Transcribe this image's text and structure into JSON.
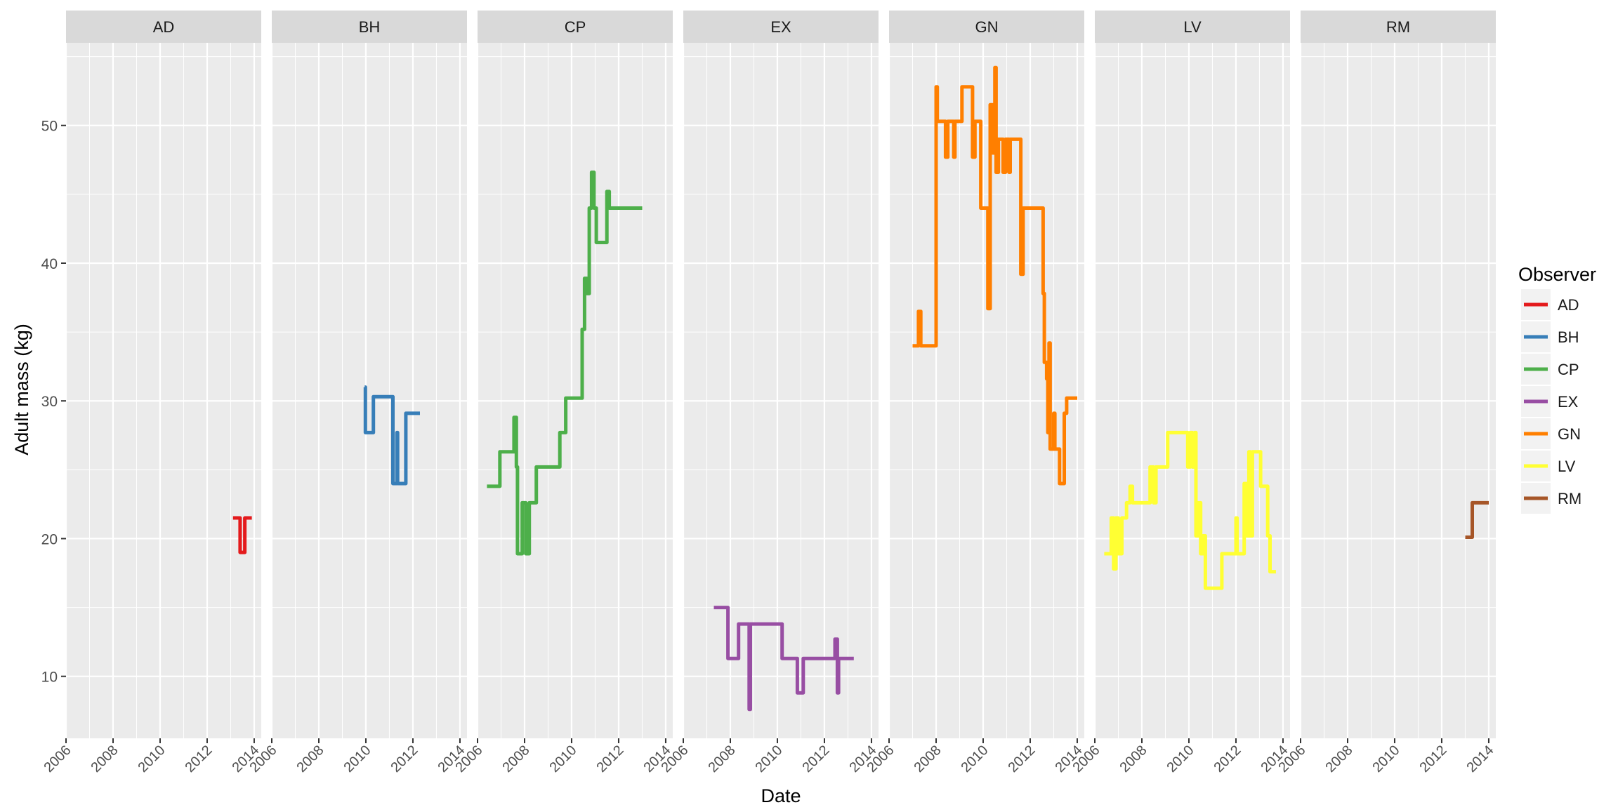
{
  "chart_data": {
    "type": "line",
    "subtype": "step",
    "faceted": true,
    "xlabel": "Date",
    "ylabel": "Adult mass (kg)",
    "xlim": [
      2006,
      2014.3
    ],
    "ylim": [
      5.5,
      56
    ],
    "x_ticks": [
      2006,
      2008,
      2010,
      2012,
      2014
    ],
    "y_ticks": [
      10,
      20,
      30,
      40,
      50
    ],
    "grid": true,
    "legend": {
      "title": "Observer",
      "position": "right",
      "entries": [
        "AD",
        "BH",
        "CP",
        "EX",
        "GN",
        "LV",
        "RM"
      ]
    },
    "colors": {
      "AD": "#e41a1c",
      "BH": "#377eb8",
      "CP": "#4daf4a",
      "EX": "#984ea3",
      "GN": "#ff7f00",
      "LV": "#ffff33",
      "RM": "#a65628",
      "panel_bg": "#ebebeb",
      "strip_bg": "#d9d9d9",
      "grid": "#ffffff"
    },
    "series": [
      {
        "name": "AD",
        "points": [
          [
            2013.1,
            21.5
          ],
          [
            2013.35,
            21.5
          ],
          [
            2013.4,
            19.0
          ],
          [
            2013.55,
            19.0
          ],
          [
            2013.6,
            21.5
          ],
          [
            2013.9,
            21.5
          ]
        ]
      },
      {
        "name": "BH",
        "points": [
          [
            2009.95,
            31.0
          ],
          [
            2009.98,
            27.7
          ],
          [
            2010.3,
            27.7
          ],
          [
            2010.32,
            30.3
          ],
          [
            2011.1,
            30.3
          ],
          [
            2011.15,
            24.0
          ],
          [
            2011.3,
            24.0
          ],
          [
            2011.32,
            27.7
          ],
          [
            2011.35,
            24.0
          ],
          [
            2011.65,
            24.0
          ],
          [
            2011.7,
            29.1
          ],
          [
            2012.3,
            29.1
          ]
        ]
      },
      {
        "name": "CP",
        "points": [
          [
            2006.4,
            23.8
          ],
          [
            2006.9,
            23.8
          ],
          [
            2006.95,
            26.3
          ],
          [
            2007.5,
            26.3
          ],
          [
            2007.55,
            28.8
          ],
          [
            2007.65,
            25.2
          ],
          [
            2007.7,
            18.9
          ],
          [
            2007.85,
            18.9
          ],
          [
            2007.9,
            22.6
          ],
          [
            2008.05,
            18.9
          ],
          [
            2008.15,
            18.9
          ],
          [
            2008.2,
            22.6
          ],
          [
            2008.45,
            22.6
          ],
          [
            2008.5,
            25.2
          ],
          [
            2009.45,
            25.2
          ],
          [
            2009.5,
            27.7
          ],
          [
            2009.7,
            27.7
          ],
          [
            2009.75,
            30.2
          ],
          [
            2010.4,
            30.2
          ],
          [
            2010.45,
            35.2
          ],
          [
            2010.55,
            38.9
          ],
          [
            2010.65,
            37.8
          ],
          [
            2010.75,
            44.0
          ],
          [
            2010.85,
            46.6
          ],
          [
            2010.95,
            44.0
          ],
          [
            2011.05,
            41.5
          ],
          [
            2011.45,
            41.5
          ],
          [
            2011.5,
            45.2
          ],
          [
            2011.6,
            44.0
          ],
          [
            2013.0,
            44.0
          ]
        ]
      },
      {
        "name": "EX",
        "points": [
          [
            2007.3,
            15.0
          ],
          [
            2007.85,
            15.0
          ],
          [
            2007.9,
            11.3
          ],
          [
            2008.3,
            11.3
          ],
          [
            2008.35,
            13.8
          ],
          [
            2008.75,
            13.8
          ],
          [
            2008.8,
            7.6
          ],
          [
            2008.85,
            13.8
          ],
          [
            2010.15,
            13.8
          ],
          [
            2010.2,
            11.3
          ],
          [
            2010.8,
            11.3
          ],
          [
            2010.85,
            8.8
          ],
          [
            2011.05,
            8.8
          ],
          [
            2011.1,
            11.3
          ],
          [
            2012.4,
            11.3
          ],
          [
            2012.45,
            12.7
          ],
          [
            2012.55,
            8.8
          ],
          [
            2012.6,
            11.3
          ],
          [
            2013.25,
            11.3
          ]
        ]
      },
      {
        "name": "GN",
        "points": [
          [
            2007.0,
            34.0
          ],
          [
            2007.2,
            34.0
          ],
          [
            2007.25,
            36.5
          ],
          [
            2007.35,
            34.0
          ],
          [
            2007.95,
            34.0
          ],
          [
            2008.0,
            52.8
          ],
          [
            2008.05,
            50.3
          ],
          [
            2008.35,
            50.3
          ],
          [
            2008.4,
            47.7
          ],
          [
            2008.5,
            50.3
          ],
          [
            2008.75,
            47.7
          ],
          [
            2008.8,
            50.3
          ],
          [
            2009.05,
            50.3
          ],
          [
            2009.1,
            52.8
          ],
          [
            2009.5,
            52.8
          ],
          [
            2009.55,
            47.7
          ],
          [
            2009.65,
            50.3
          ],
          [
            2009.85,
            50.3
          ],
          [
            2009.9,
            44.0
          ],
          [
            2010.15,
            44.0
          ],
          [
            2010.2,
            36.7
          ],
          [
            2010.3,
            51.5
          ],
          [
            2010.4,
            48.0
          ],
          [
            2010.5,
            54.2
          ],
          [
            2010.55,
            46.6
          ],
          [
            2010.65,
            49.0
          ],
          [
            2010.85,
            46.6
          ],
          [
            2010.95,
            49.0
          ],
          [
            2011.1,
            46.6
          ],
          [
            2011.15,
            49.0
          ],
          [
            2011.55,
            49.0
          ],
          [
            2011.6,
            39.2
          ],
          [
            2011.7,
            44.0
          ],
          [
            2012.5,
            44.0
          ],
          [
            2012.55,
            37.8
          ],
          [
            2012.6,
            32.8
          ],
          [
            2012.7,
            31.6
          ],
          [
            2012.75,
            27.7
          ],
          [
            2012.8,
            34.2
          ],
          [
            2012.85,
            26.5
          ],
          [
            2013.0,
            29.1
          ],
          [
            2013.05,
            26.5
          ],
          [
            2013.2,
            26.5
          ],
          [
            2013.25,
            24.0
          ],
          [
            2013.4,
            24.0
          ],
          [
            2013.45,
            29.1
          ],
          [
            2013.55,
            30.2
          ],
          [
            2014.0,
            30.2
          ]
        ]
      },
      {
        "name": "LV",
        "points": [
          [
            2006.4,
            18.9
          ],
          [
            2006.65,
            18.9
          ],
          [
            2006.7,
            21.5
          ],
          [
            2006.8,
            17.8
          ],
          [
            2006.9,
            21.5
          ],
          [
            2007.0,
            18.9
          ],
          [
            2007.15,
            21.5
          ],
          [
            2007.35,
            22.6
          ],
          [
            2007.5,
            23.8
          ],
          [
            2007.6,
            22.6
          ],
          [
            2008.3,
            22.6
          ],
          [
            2008.35,
            25.2
          ],
          [
            2008.5,
            22.6
          ],
          [
            2008.6,
            25.2
          ],
          [
            2009.05,
            25.2
          ],
          [
            2009.1,
            27.7
          ],
          [
            2009.9,
            27.7
          ],
          [
            2009.95,
            25.2
          ],
          [
            2010.05,
            27.7
          ],
          [
            2010.15,
            25.2
          ],
          [
            2010.25,
            27.7
          ],
          [
            2010.3,
            20.2
          ],
          [
            2010.4,
            22.6
          ],
          [
            2010.5,
            18.9
          ],
          [
            2010.6,
            20.2
          ],
          [
            2010.7,
            16.4
          ],
          [
            2011.3,
            16.4
          ],
          [
            2011.4,
            18.9
          ],
          [
            2011.95,
            18.9
          ],
          [
            2012.0,
            21.5
          ],
          [
            2012.05,
            18.9
          ],
          [
            2012.3,
            18.9
          ],
          [
            2012.35,
            24.0
          ],
          [
            2012.45,
            20.2
          ],
          [
            2012.55,
            26.3
          ],
          [
            2012.6,
            20.2
          ],
          [
            2012.7,
            26.3
          ],
          [
            2013.0,
            26.3
          ],
          [
            2013.05,
            23.8
          ],
          [
            2013.3,
            23.8
          ],
          [
            2013.35,
            20.2
          ],
          [
            2013.45,
            17.6
          ],
          [
            2013.7,
            17.6
          ]
        ]
      },
      {
        "name": "RM",
        "points": [
          [
            2013.0,
            20.1
          ],
          [
            2013.25,
            20.1
          ],
          [
            2013.3,
            22.6
          ],
          [
            2014.0,
            22.6
          ]
        ]
      }
    ]
  }
}
